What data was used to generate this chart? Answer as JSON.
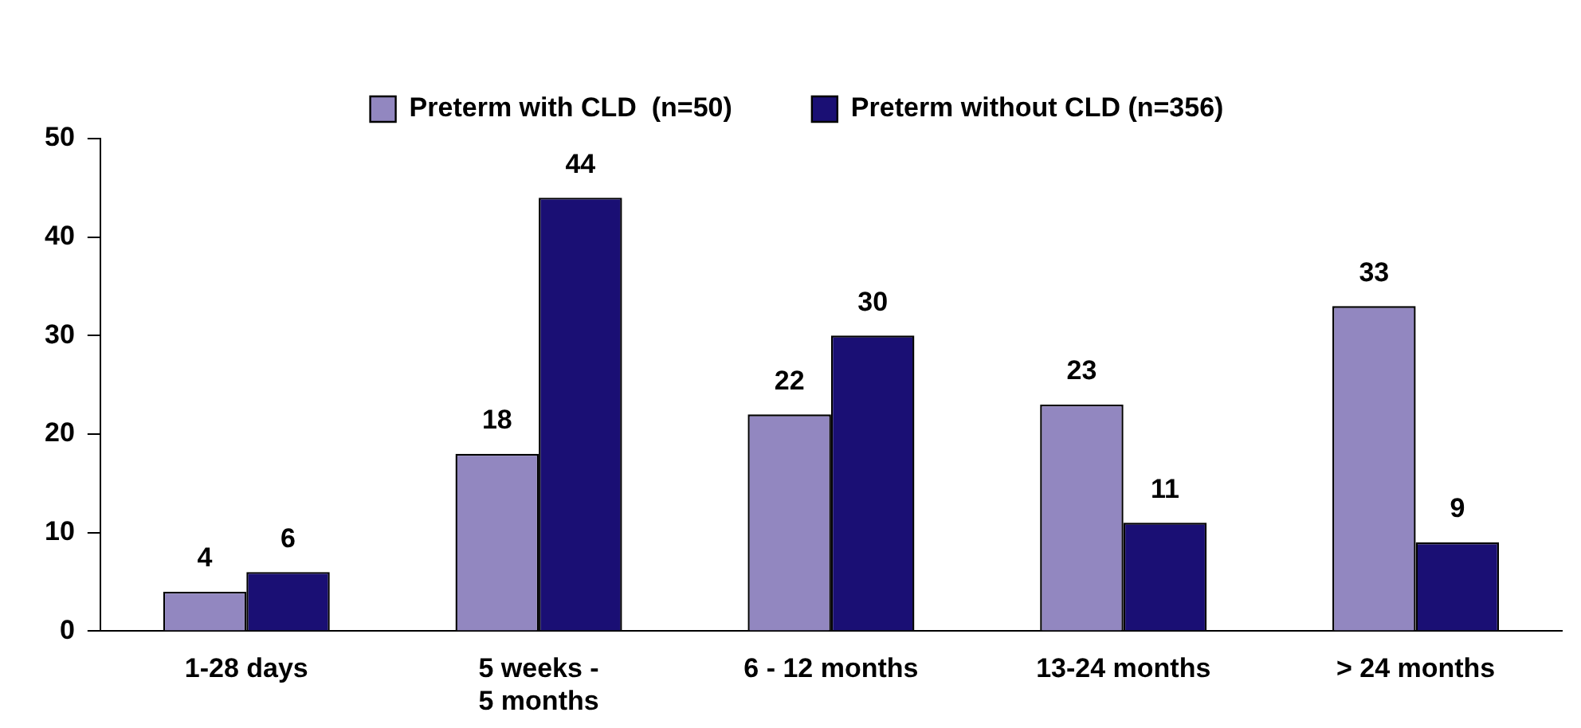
{
  "chart_data": {
    "type": "bar",
    "categories": [
      "1-28 days",
      "5 weeks -\n5 months",
      "6 - 12 months",
      "13-24 months",
      "> 24 months"
    ],
    "series": [
      {
        "name": "Preterm with CLD  (n=50)",
        "color": "#9287c0",
        "values": [
          4,
          18,
          22,
          23,
          33
        ]
      },
      {
        "name": "Preterm without CLD (n=356)",
        "color": "#1a0f74",
        "values": [
          6,
          44,
          30,
          11,
          9
        ]
      }
    ],
    "ylim": [
      0,
      50
    ],
    "yticks": [
      0,
      10,
      20,
      30,
      40,
      50
    ],
    "grid": false,
    "legend": "top",
    "data_labels": true
  }
}
